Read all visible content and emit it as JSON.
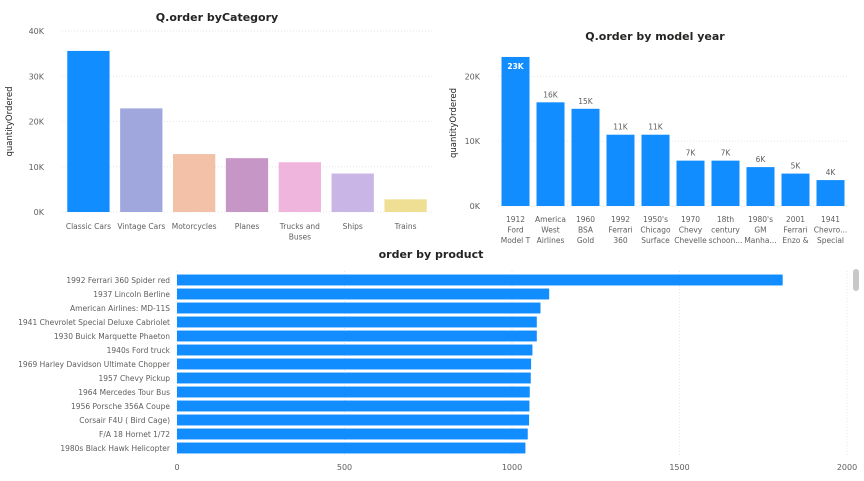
{
  "chart_data": [
    {
      "type": "bar",
      "title": "Q.order byCategory",
      "xlabel": "",
      "ylabel": "quantityOrdered",
      "ylim": [
        0,
        40000
      ],
      "yticks": [
        "0K",
        "10K",
        "20K",
        "30K",
        "40K"
      ],
      "categories": [
        "Classic Cars",
        "Vintage Cars",
        "Motorcycles",
        "Planes",
        "Trucks and Buses",
        "Ships",
        "Trains"
      ],
      "values": [
        35600,
        22900,
        12800,
        11900,
        11000,
        8500,
        2800
      ],
      "colors": [
        "#118dff",
        "#a0a7dc",
        "#f3c1a8",
        "#c696c6",
        "#f0b5dc",
        "#c9b6e6",
        "#efdf94"
      ],
      "grid": true
    },
    {
      "type": "bar",
      "title": "Q.order by model year",
      "xlabel": "",
      "ylabel": "quantityOrdered",
      "ylim": [
        0,
        25000
      ],
      "yticks": [
        "0K",
        "10K",
        "20K"
      ],
      "categories": [
        "1912 Ford Model T",
        "America West Airlines",
        "1960 BSA Gold",
        "1992 Ferrari 360",
        "1950's Chicago Surface",
        "1970 Chevy Chevelle",
        "18th century schoon...",
        "1980's GM Manha...",
        "2001 Ferrari Enzo &",
        "1941 Chevro... Special"
      ],
      "values": [
        23000,
        16000,
        15000,
        11000,
        11000,
        7000,
        7000,
        6000,
        5000,
        4000
      ],
      "data_labels": [
        "23K",
        "16K",
        "15K",
        "11K",
        "11K",
        "7K",
        "7K",
        "6K",
        "5K",
        "4K"
      ],
      "colors": [
        "#118dff"
      ],
      "grid": true
    },
    {
      "type": "bar",
      "orientation": "horizontal",
      "title": "order by product",
      "xlabel": "",
      "ylabel": "",
      "xlim": [
        0,
        2000
      ],
      "xticks": [
        "0",
        "500",
        "1000",
        "1500",
        "2000"
      ],
      "categories": [
        "1992 Ferrari 360 Spider red",
        "1937 Lincoln Berline",
        "American Airlines: MD-11S",
        "1941 Chevrolet Special Deluxe Cabriolet",
        "1930 Buick Marquette Phaeton",
        "1940s Ford truck",
        "1969 Harley Davidson Ultimate Chopper",
        "1957 Chevy Pickup",
        "1964 Mercedes Tour Bus",
        "1956 Porsche 356A Coupe",
        "Corsair F4U ( Bird Cage)",
        "F/A 18 Hornet 1/72",
        "1980s Black Hawk Helicopter"
      ],
      "values": [
        1808,
        1111,
        1085,
        1074,
        1074,
        1061,
        1057,
        1056,
        1053,
        1052,
        1051,
        1047,
        1040
      ],
      "colors": [
        "#118dff"
      ],
      "grid": true
    }
  ]
}
